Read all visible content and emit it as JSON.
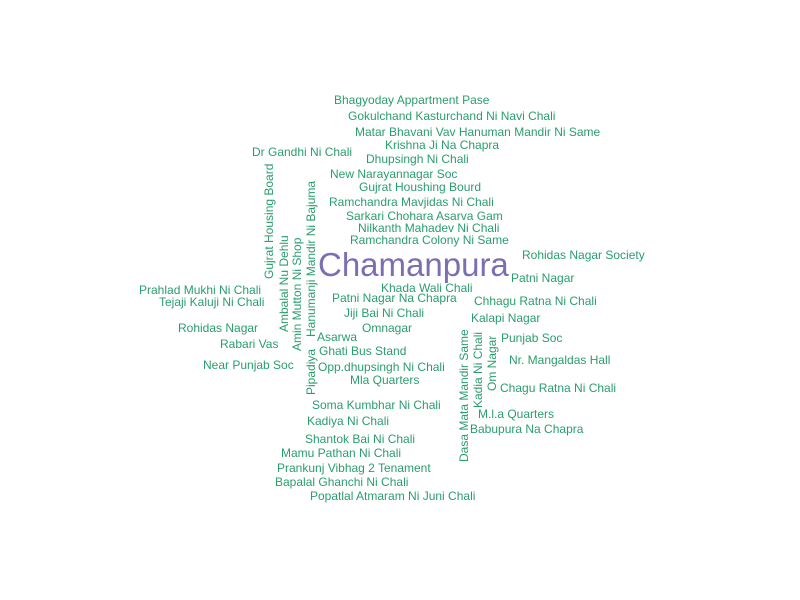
{
  "title": "Chamanpura",
  "colors": {
    "main": "#7a6fb2",
    "words": "#2a9d6e"
  },
  "words": [
    "Bhagyoday Appartment Pase",
    "Gokulchand Kasturchand Ni Navi Chali",
    "Matar Bhavani Vav Hanuman Mandir Ni Same",
    "Krishna Ji Na Chapra",
    "Dr Gandhi Ni Chali",
    "Dhupsingh Ni Chali",
    "New Narayannagar Soc",
    "Gujrat Houshing Bourd",
    "Ramchandra Mavjidas Ni Chali",
    "Sarkari Chohara Asarva Gam",
    "Nilkanth Mahadev Ni Chali",
    "Ramchandra Colony Ni Same",
    "Rohidas Nagar Society",
    "Patni Nagar",
    "Khada Wali Chali",
    "Prahlad Mukhi Ni Chali",
    "Tejaji Kaluji Ni Chali",
    "Patni Nagar Na Chapra",
    "Chhagu Ratna Ni Chali",
    "Jiji Bai Ni Chali",
    "Kalapi Nagar",
    "Rohidas Nagar",
    "Omnagar",
    "Asarwa",
    "Punjab Soc",
    "Rabari Vas",
    "Ghati Bus Stand",
    "Nr. Mangaldas Hall",
    "Near Punjab Soc",
    "Opp.dhupsingh Ni Chali",
    "Mla Quarters",
    "Chagu Ratna Ni Chali",
    "Soma Kumbhar Ni Chali",
    "M.l.a Quarters",
    "Kadiya Ni Chali",
    "Babupura Na Chapra",
    "Shantok Bai Ni Chali",
    "Mamu Pathan Ni Chali",
    "Prankunj Vibhag 2 Tenament",
    "Bapalal Ghanchi Ni Chali",
    "Popatlal Atmaram Ni Juni Chali",
    "Gujrat Housing Board",
    "Ambalal Nu Dehlu",
    "Amin Mutton Ni Shop",
    "Hanumanji Mandir Ni Bajuma",
    "Pipadiya",
    "Dasa Mata Mandir Same",
    "Kadia Ni Chali",
    "Om Nagar"
  ]
}
